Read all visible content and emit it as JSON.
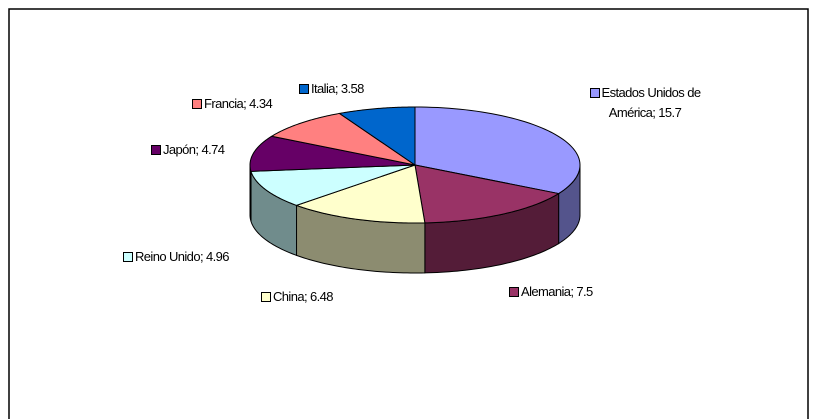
{
  "chart_data": {
    "type": "pie3d",
    "values": [
      15.7,
      7.5,
      6.48,
      4.96,
      4.74,
      4.34,
      3.58
    ],
    "value_labels": [
      "Estados Unidos de América; 15.7",
      "Alemania; 7.5",
      "China; 6.48",
      "Reino Unido; 4.96",
      "Japón; 4.74",
      "Francia; 4.34",
      "Italia; 3.58"
    ],
    "colors": [
      "#9999ff",
      "#993366",
      "#ffffcc",
      "#ccffff",
      "#660066",
      "#ff8080",
      "#0066cc"
    ]
  }
}
